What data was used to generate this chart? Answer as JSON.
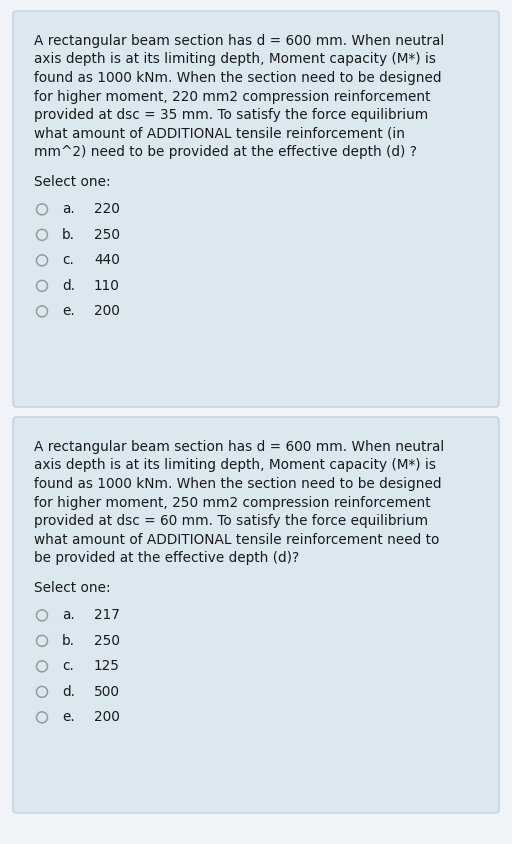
{
  "bg_color": "#f0f4f8",
  "card_color": "#dce8f0",
  "card_border_color": "#b8ccd8",
  "text_color": "#1a1a1a",
  "radio_color": "#999999",
  "question1": {
    "text": "A rectangular beam section has d = 600 mm. When neutral axis depth is at its limiting depth, Moment capacity (M*) is found as 1000 kNm. When the section need to be designed for higher moment, 220 mm2 compression reinforcement provided at dsc = 35 mm. To satisfy the force equilibrium what amount of ADDITIONAL tensile reinforcement (in mm^2) need to be provided at the effective depth (d) ?",
    "select_label": "Select one:",
    "options": [
      {
        "label": "a.",
        "value": "220"
      },
      {
        "label": "b.",
        "value": "250"
      },
      {
        "label": "c.",
        "value": "440"
      },
      {
        "label": "d.",
        "value": "110"
      },
      {
        "label": "e.",
        "value": "200"
      }
    ]
  },
  "question2": {
    "text": "A rectangular beam section has d = 600 mm. When neutral axis depth is at its limiting depth, Moment capacity (M*) is found as 1000 kNm. When the section need to be designed for higher moment, 250 mm2 compression reinforcement provided at dsc = 60 mm. To satisfy the force equilibrium what amount of ADDITIONAL tensile reinforcement need to be provided at the effective depth (d)?",
    "select_label": "Select one:",
    "options": [
      {
        "label": "a.",
        "value": "217"
      },
      {
        "label": "b.",
        "value": "250"
      },
      {
        "label": "c.",
        "value": "125"
      },
      {
        "label": "d.",
        "value": "500"
      },
      {
        "label": "e.",
        "value": "200"
      }
    ]
  },
  "font_size_body": 9.8,
  "font_size_options": 9.8,
  "font_size_select": 9.8,
  "card1_lines": [
    "A rectangular beam section has d = 600 mm. When neutral",
    "axis depth is at its limiting depth, Moment capacity (M*) is",
    "found as 1000 kNm. When the section need to be designed",
    "for higher moment, 220 mm2 compression reinforcement",
    "provided at dsc = 35 mm. To satisfy the force equilibrium",
    "what amount of ADDITIONAL tensile reinforcement (in",
    "mm^2) need to be provided at the effective depth (d) ?"
  ],
  "card2_lines": [
    "A rectangular beam section has d = 600 mm. When neutral",
    "axis depth is at its limiting depth, Moment capacity (M*) is",
    "found as 1000 kNm. When the section need to be designed",
    "for higher moment, 250 mm2 compression reinforcement",
    "provided at dsc = 60 mm. To satisfy the force equilibrium",
    "what amount of ADDITIONAL tensile reinforcement need to",
    "be provided at the effective depth (d)?"
  ]
}
